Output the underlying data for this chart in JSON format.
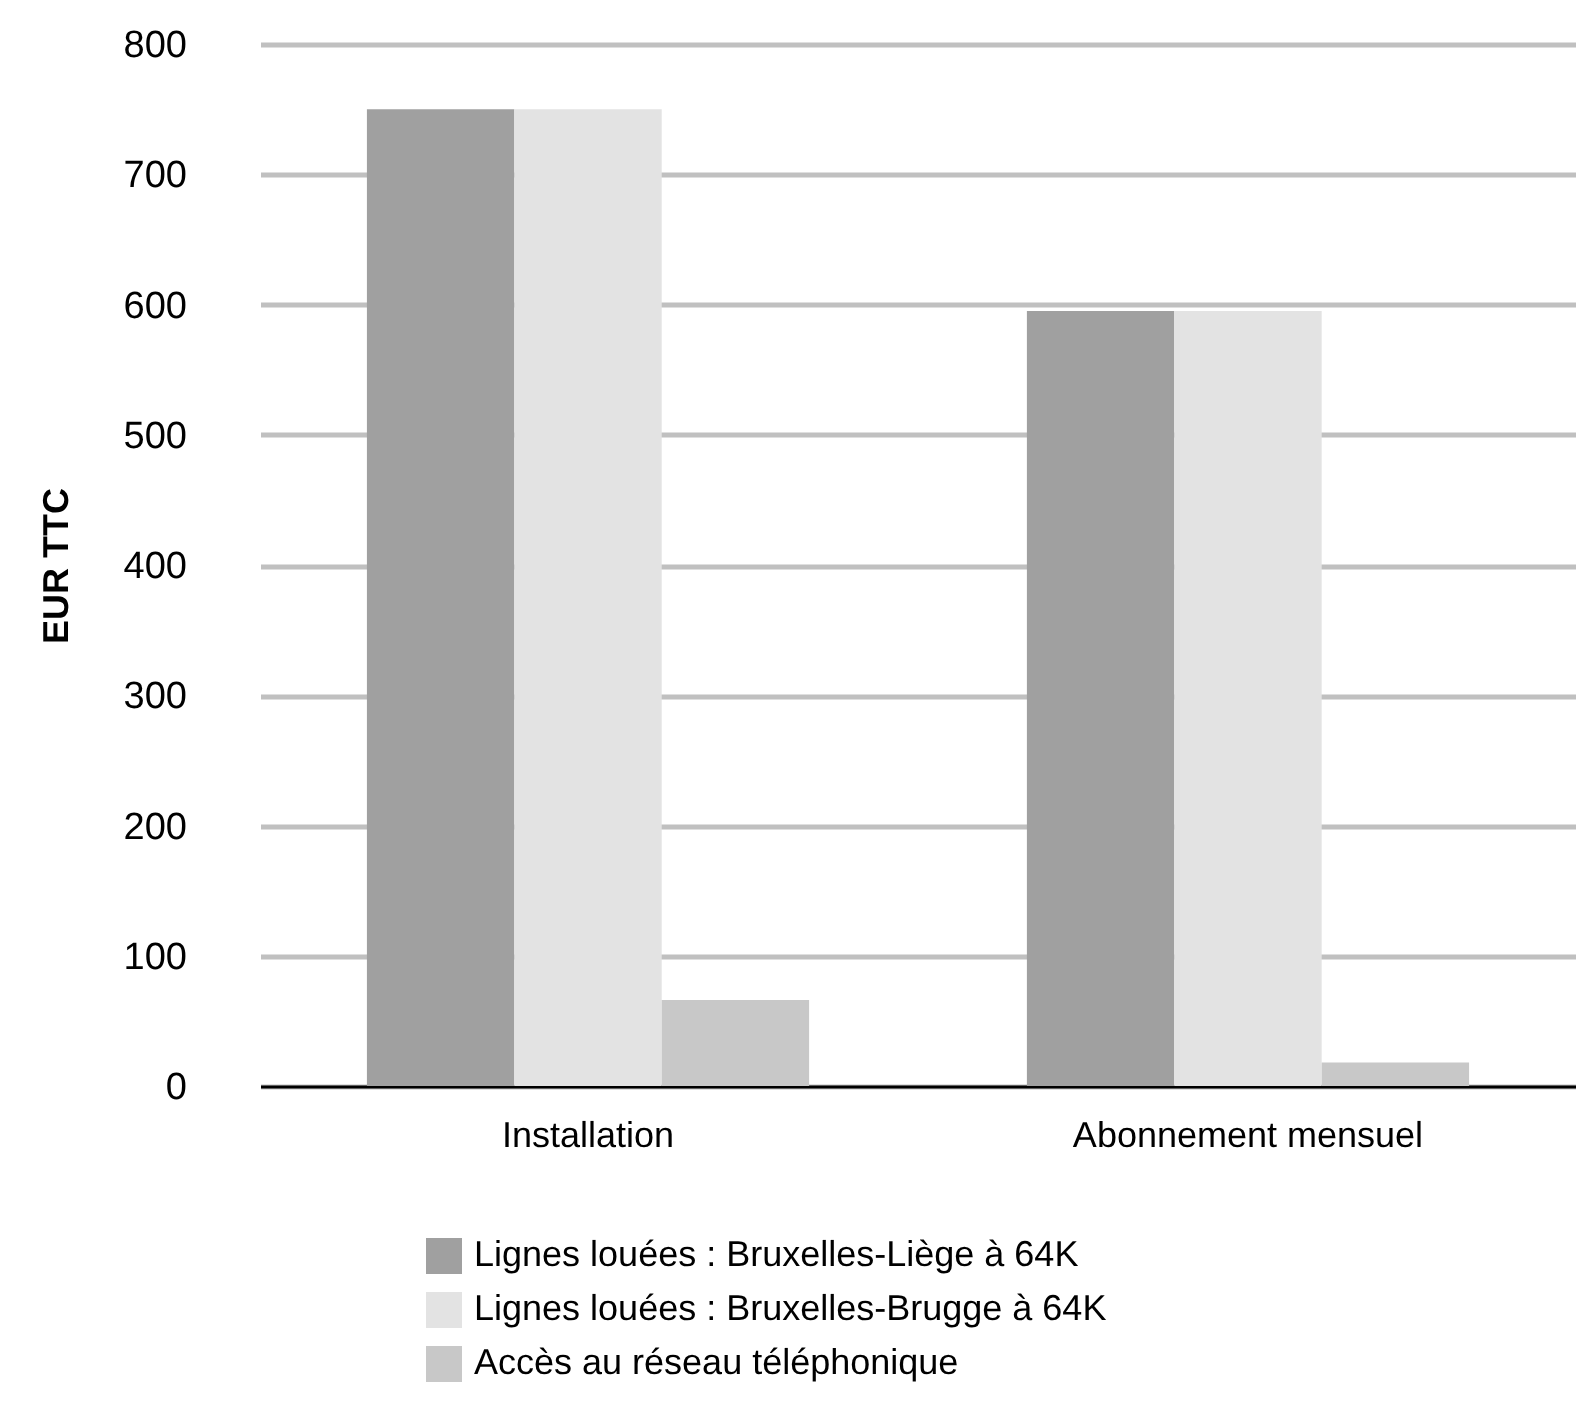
{
  "chart_data": {
    "type": "bar",
    "ylabel": "EUR TTC",
    "categories": [
      "Installation",
      "Abonnement mensuel"
    ],
    "series": [
      {
        "name": "Lignes louées :  Bruxelles-Liège à 64K",
        "color": "#a0a0a0",
        "values": [
          750,
          595
        ]
      },
      {
        "name": "Lignes louées :  Bruxelles-Brugge à 64K",
        "color": "#e3e3e3",
        "values": [
          750,
          595
        ]
      },
      {
        "name": "Accès au réseau téléphonique",
        "color": "#c8c8c8",
        "values": [
          66,
          18
        ]
      }
    ],
    "ylim": [
      0,
      800
    ],
    "yticks": [
      0,
      100,
      200,
      300,
      400,
      500,
      600,
      700,
      800
    ],
    "grid": "y",
    "legend": "bottom"
  }
}
